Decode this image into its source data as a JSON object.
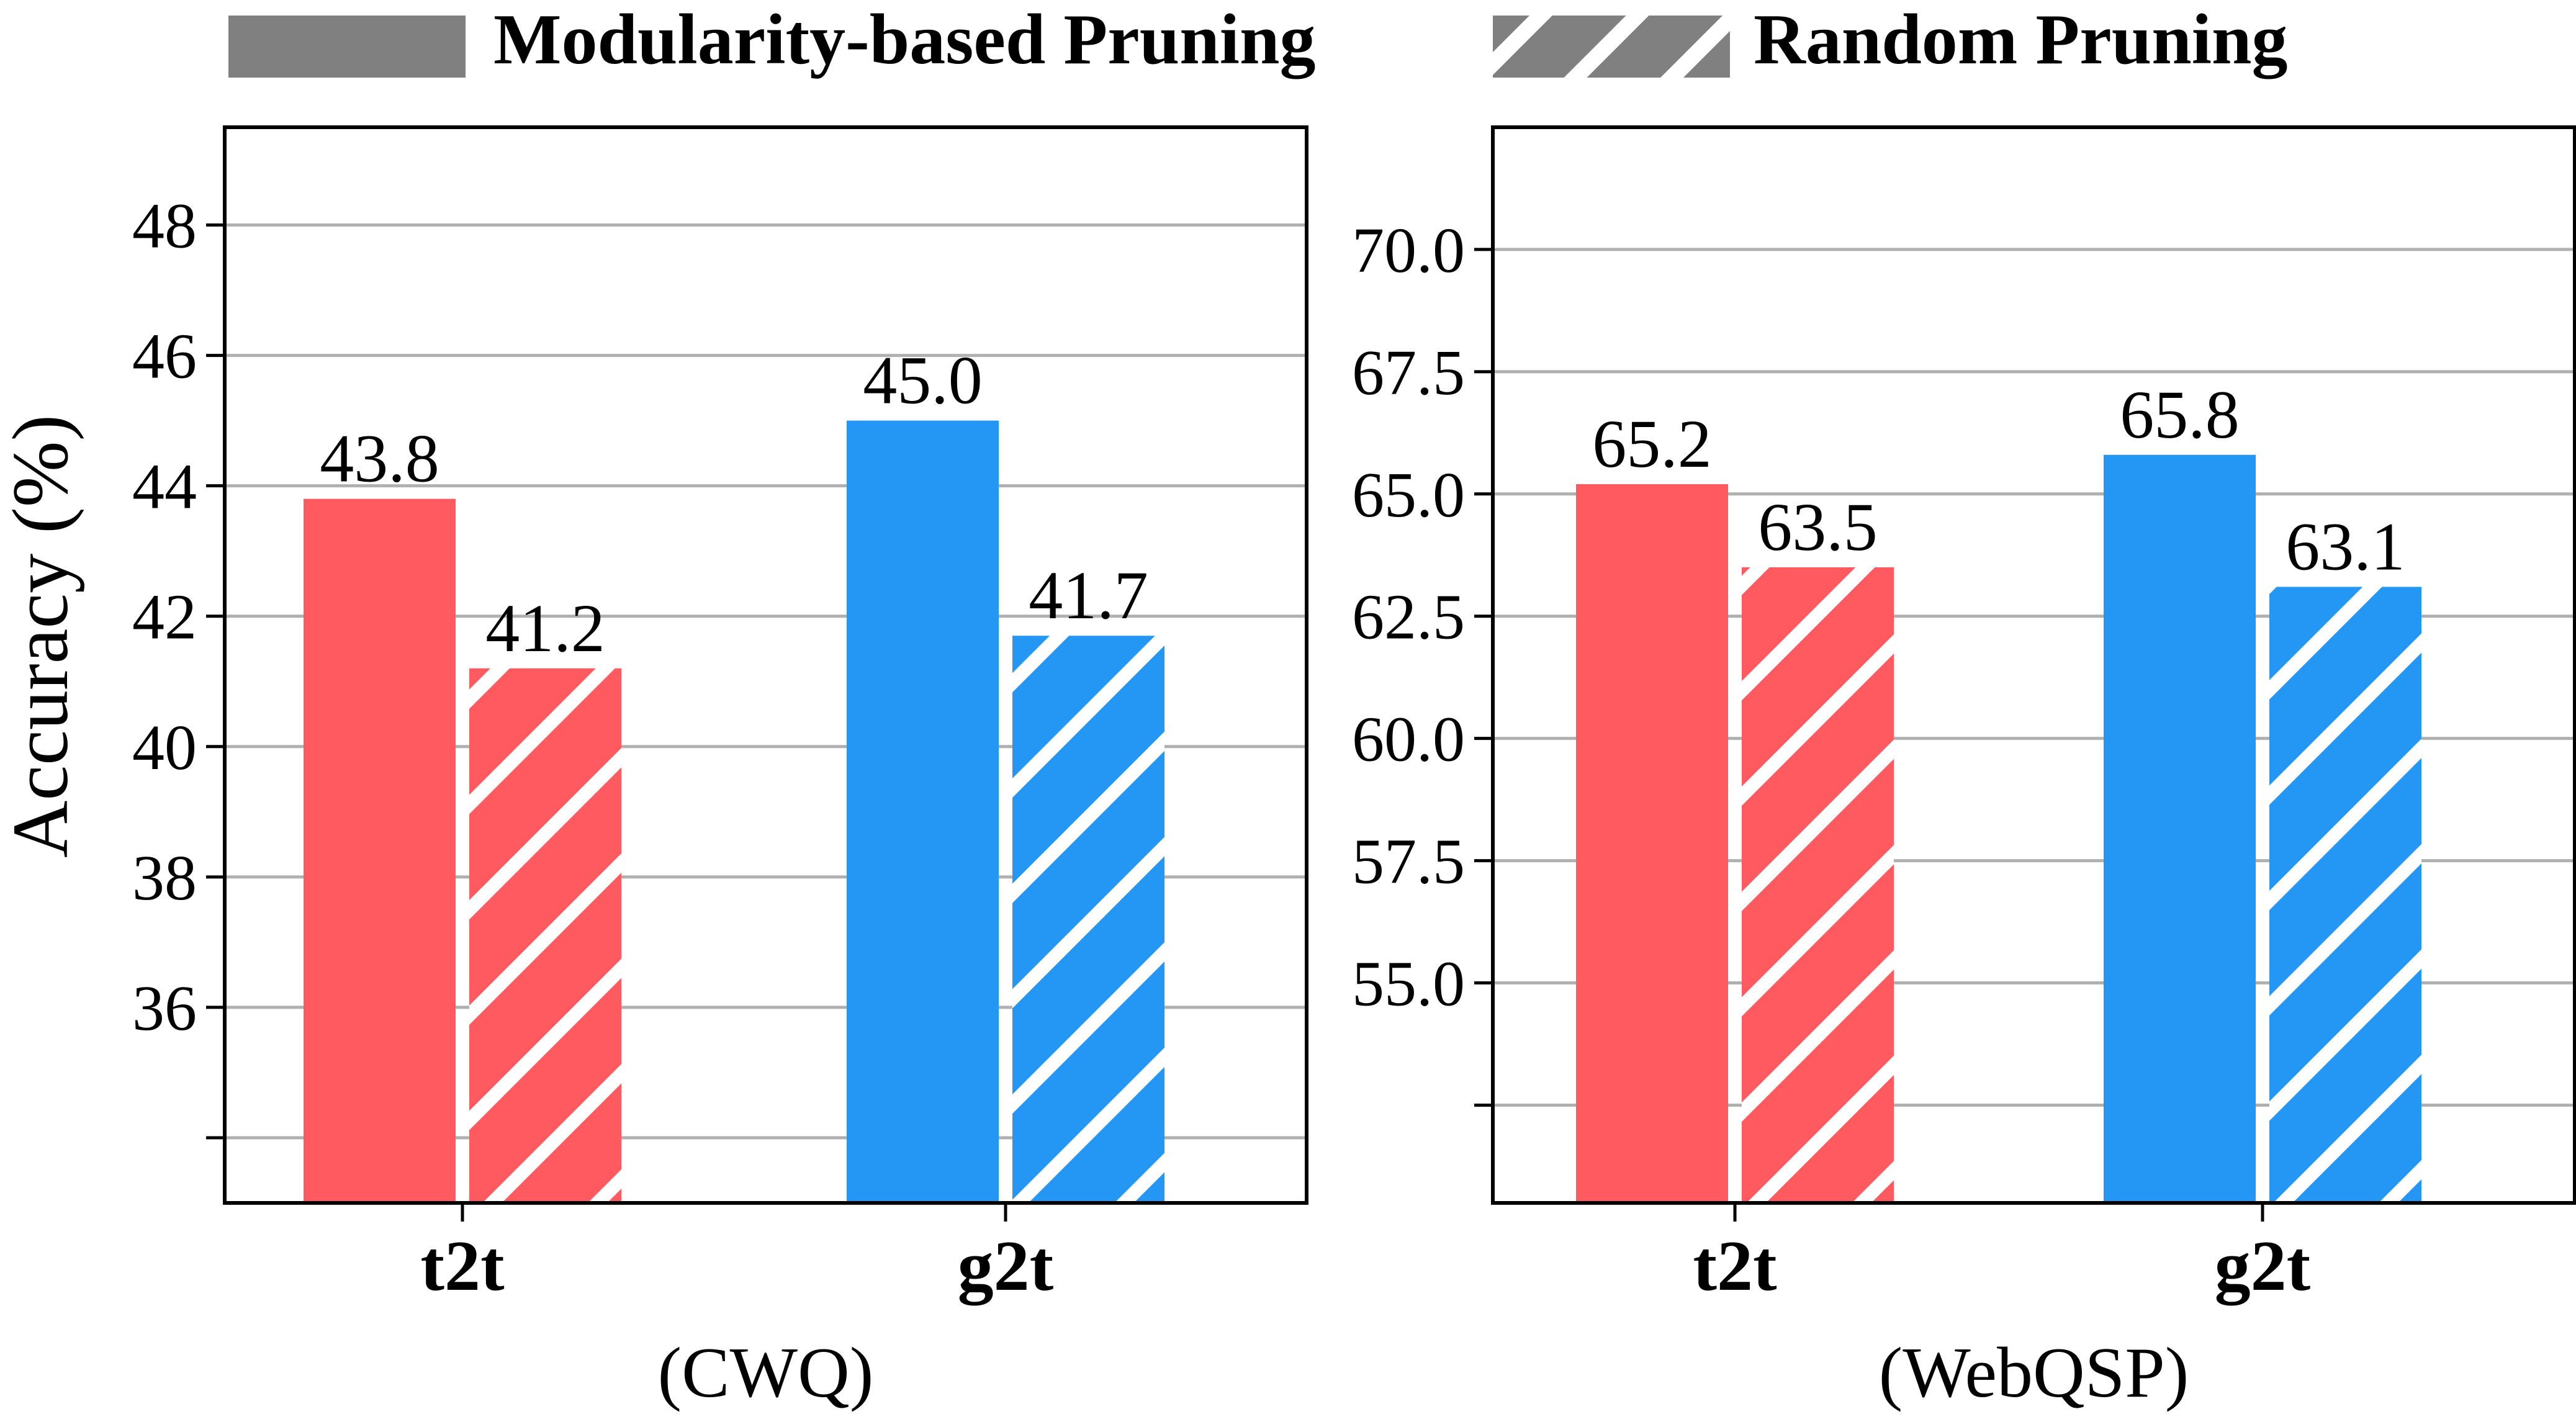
{
  "legend": {
    "solid_label": "Modularity-based Pruning",
    "hatched_label": "Random Pruning"
  },
  "colors": {
    "t2t": "#FF5A60",
    "g2t": "#2496F3",
    "legend_swatch": "#808080",
    "grid": "#B0B0B0",
    "hatch": "#FFFFFF"
  },
  "ylabel": "Accuracy (%)",
  "chart_data": [
    {
      "type": "bar",
      "title": "",
      "xlabel": "(CWQ)",
      "ylabel": "Accuracy (%)",
      "categories": [
        "t2t",
        "g2t"
      ],
      "series": [
        {
          "name": "Modularity-based Pruning",
          "values": [
            43.8,
            45.0
          ],
          "labels": [
            "43.8",
            "45.0"
          ]
        },
        {
          "name": "Random Pruning",
          "values": [
            41.2,
            41.7
          ],
          "labels": [
            "41.2",
            "41.7"
          ]
        }
      ],
      "ylim": [
        33,
        49.5
      ],
      "yticks": [
        34,
        36,
        38,
        40,
        42,
        44,
        46,
        48
      ],
      "ytick_labels": [
        "",
        "36",
        "38",
        "40",
        "42",
        "44",
        "46",
        "48"
      ],
      "grid": true
    },
    {
      "type": "bar",
      "title": "",
      "xlabel": "(WebQSP)",
      "ylabel": "",
      "categories": [
        "t2t",
        "g2t"
      ],
      "series": [
        {
          "name": "Modularity-based Pruning",
          "values": [
            65.2,
            65.8
          ],
          "labels": [
            "65.2",
            "65.8"
          ]
        },
        {
          "name": "Random Pruning",
          "values": [
            63.5,
            63.1
          ],
          "labels": [
            "63.5",
            "63.1"
          ]
        }
      ],
      "ylim": [
        50.5,
        72.5
      ],
      "yticks": [
        52.5,
        55.0,
        57.5,
        60.0,
        62.5,
        65.0,
        67.5,
        70.0
      ],
      "ytick_labels": [
        "",
        "55.0",
        "57.5",
        "60.0",
        "62.5",
        "65.0",
        "67.5",
        "70.0"
      ],
      "grid": true
    }
  ]
}
